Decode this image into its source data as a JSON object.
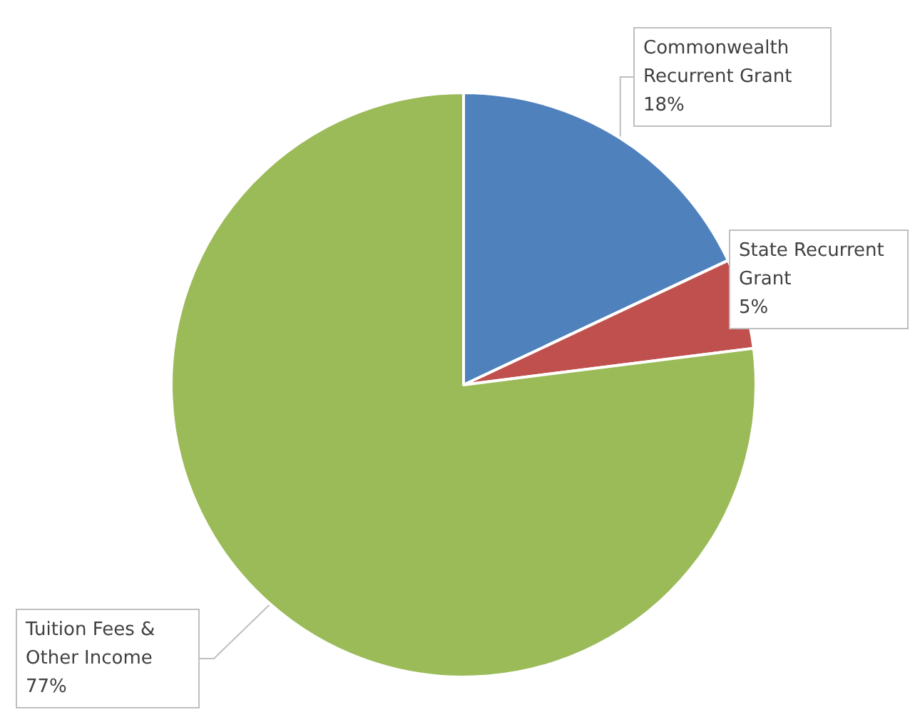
{
  "chart_data": {
    "type": "pie",
    "categories": [
      "Commonwealth Recurrent Grant",
      "State Recurrent Grant",
      "Tuition Fees & Other Income"
    ],
    "values": [
      18,
      5,
      77
    ],
    "colors": [
      "#4f81bd",
      "#c0504d",
      "#9bbb59"
    ],
    "value_labels": [
      "18%",
      "5%",
      "77%"
    ]
  }
}
